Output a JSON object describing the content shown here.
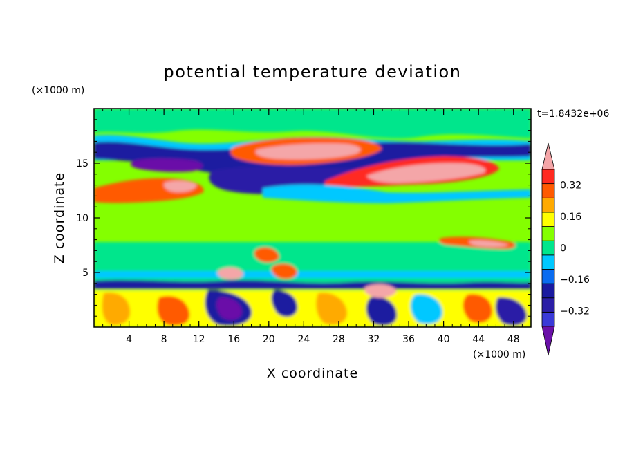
{
  "chart_data": {
    "type": "heatmap",
    "title": "potential temperature deviation",
    "xlabel": "X coordinate",
    "ylabel": "Z coordinate",
    "x_unit": "(×1000 m)",
    "y_unit": "(×1000 m)",
    "time_label": "t=1.8432e+06",
    "xlim": [
      0,
      50
    ],
    "ylim": [
      0,
      20
    ],
    "x_ticks": [
      4,
      8,
      12,
      16,
      20,
      24,
      28,
      32,
      36,
      40,
      44,
      48
    ],
    "y_ticks": [
      5,
      10,
      15
    ],
    "colorbar": {
      "levels": [
        -0.4,
        -0.32,
        -0.24,
        -0.16,
        -0.08,
        0,
        0.08,
        0.16,
        0.24,
        0.32,
        0.4
      ],
      "tick_values": [
        0.32,
        0.16,
        0,
        -0.16,
        -0.32
      ],
      "tick_labels": [
        "0.32",
        "0.16",
        "0",
        "−0.16",
        "−0.32"
      ],
      "band_colors": [
        "#3a3ad8",
        "#2b1ea6",
        "#1a1aa0",
        "#0a6cf0",
        "#00c8ff",
        "#00e68c",
        "#84ff00",
        "#ffff00",
        "#ffaa00",
        "#ff5a00",
        "#ff2a20"
      ],
      "over_color": "#f4a6a8",
      "under_color": "#6a10a8"
    },
    "field_features": [
      {
        "x": [
          17,
          31
        ],
        "z": [
          14.3,
          16.6
        ],
        "value": 0.42
      },
      {
        "x": [
          29,
          47
        ],
        "z": [
          12.5,
          15.3
        ],
        "value": 0.42
      },
      {
        "x": [
          0,
          12
        ],
        "z": [
          10.8,
          14.0
        ],
        "value": 0.3
      },
      {
        "x": [
          14,
          32
        ],
        "z": [
          12.5,
          14.6
        ],
        "value": -0.35
      },
      {
        "x": [
          0,
          50
        ],
        "z": [
          15.2,
          17.0
        ],
        "value": -0.3
      },
      {
        "x": [
          5,
          14
        ],
        "z": [
          14.2,
          15.8
        ],
        "value": -0.42
      },
      {
        "x": [
          0,
          50
        ],
        "z": [
          0.3,
          4.0
        ],
        "value": 0.2
      },
      {
        "x": [
          14,
          18
        ],
        "z": [
          0.2,
          3.8
        ],
        "value": -0.35
      },
      {
        "x": [
          39,
          49
        ],
        "z": [
          7.2,
          8.2
        ],
        "value": 0.36
      }
    ]
  }
}
